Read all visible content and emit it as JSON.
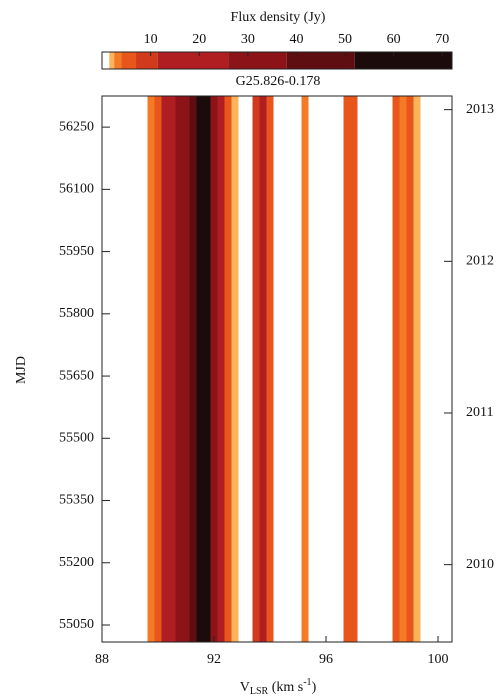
{
  "chart_data": {
    "type": "heatmap",
    "title": "G25.826-0.178",
    "colorbar_label": "Flux density (Jy)",
    "clim": [
      0,
      72
    ],
    "cticks": [
      10,
      20,
      30,
      40,
      50,
      60,
      70
    ],
    "color_levels": [
      0,
      1.5,
      2.5,
      4,
      7,
      11.5,
      26,
      38,
      52
    ],
    "colors": [
      "#ffffff",
      "#fcb35a",
      "#f47a25",
      "#e8561c",
      "#d23a1c",
      "#b01e22",
      "#8c1419",
      "#5e0d10",
      "#1c0b0b"
    ],
    "x_label": {
      "main": "V",
      "sub": "LSR",
      "unit": " (km s",
      "sup": "-1",
      "close": ")"
    },
    "y_label": "MJD",
    "x": [
      89.75,
      90,
      90.25,
      90.5,
      90.75,
      91,
      91.25,
      91.5,
      91.75,
      92,
      92.25,
      92.5,
      92.75,
      93,
      93.25,
      93.5,
      93.75,
      94,
      94.25,
      94.5,
      94.75,
      95,
      95.25,
      95.5,
      95.75,
      96,
      96.25,
      96.5,
      96.75,
      97,
      97.25,
      97.5,
      97.75,
      98,
      98.25,
      98.5,
      98.75,
      99,
      99.25,
      99.5,
      99.75
    ],
    "values": [
      3,
      6,
      12,
      20,
      28,
      35,
      45,
      65,
      55,
      30,
      12,
      5,
      2,
      0.5,
      1,
      8,
      15,
      5,
      0.5,
      0,
      0,
      0.5,
      3,
      0.5,
      0,
      0,
      0,
      0.5,
      4,
      6,
      1,
      0,
      0,
      0,
      0.5,
      4,
      3,
      4,
      2,
      0.5,
      0
    ],
    "xlim": [
      88,
      100.5
    ],
    "xticks": [
      88,
      92,
      96,
      100
    ],
    "ylim": [
      55009,
      56325
    ],
    "yticks": [
      55050,
      55200,
      55350,
      55500,
      55650,
      55800,
      55950,
      56100,
      56250
    ],
    "y2lim": [
      2009.49,
      2013.09
    ],
    "y2ticks": [
      2010,
      2011,
      2012,
      2013
    ]
  }
}
